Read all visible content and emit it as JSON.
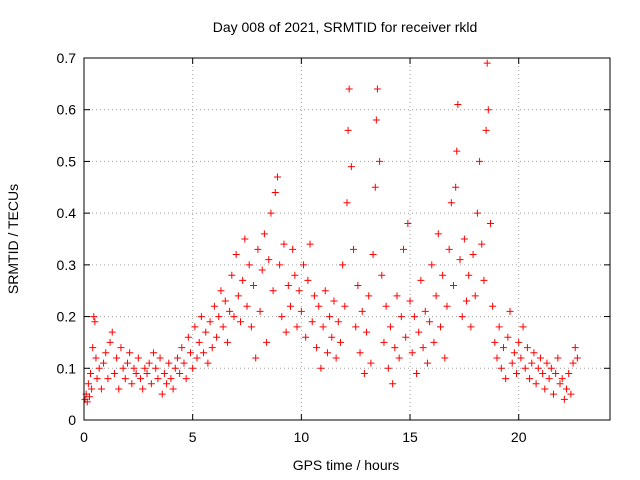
{
  "chart_data": {
    "type": "scatter",
    "title": "Day 008 of 2021, SRMTID for receiver rkld",
    "xlabel": "GPS time / hours",
    "ylabel": "SRMTID / TECUs",
    "xlim": [
      0,
      24.2
    ],
    "ylim": [
      0,
      0.7
    ],
    "xticks": [
      0,
      5,
      10,
      15,
      20
    ],
    "xtick_labels": [
      "0",
      "5",
      "10",
      "15",
      "20"
    ],
    "yticks": [
      0,
      0.1,
      0.2,
      0.3,
      0.4,
      0.5,
      0.6,
      0.7
    ],
    "ytick_labels": [
      "0",
      "0.1",
      "0.2",
      "0.3",
      "0.4",
      "0.5",
      "0.6",
      "0.7"
    ],
    "grid": true,
    "marker": "plus",
    "color": "#ff0000",
    "series": [
      {
        "name": "SRMTID",
        "points": [
          [
            0.05,
            0.04
          ],
          [
            0.1,
            0.05
          ],
          [
            0.15,
            0.035
          ],
          [
            0.2,
            0.07
          ],
          [
            0.25,
            0.045
          ],
          [
            0.3,
            0.09
          ],
          [
            0.35,
            0.06
          ],
          [
            0.4,
            0.14
          ],
          [
            0.45,
            0.2
          ],
          [
            0.5,
            0.19
          ],
          [
            0.55,
            0.12
          ],
          [
            0.6,
            0.08
          ],
          [
            0.7,
            0.1
          ],
          [
            0.8,
            0.06
          ],
          [
            0.9,
            0.11
          ],
          [
            1.0,
            0.13
          ],
          [
            1.1,
            0.08
          ],
          [
            1.2,
            0.15
          ],
          [
            1.3,
            0.17
          ],
          [
            1.4,
            0.09
          ],
          [
            1.5,
            0.12
          ],
          [
            1.6,
            0.06
          ],
          [
            1.7,
            0.14
          ],
          [
            1.8,
            0.1
          ],
          [
            1.9,
            0.08
          ],
          [
            2.0,
            0.11
          ],
          [
            2.1,
            0.13
          ],
          [
            2.2,
            0.07
          ],
          [
            2.3,
            0.1
          ],
          [
            2.4,
            0.09
          ],
          [
            2.5,
            0.12
          ],
          [
            2.6,
            0.08
          ],
          [
            2.7,
            0.06
          ],
          [
            2.8,
            0.1
          ],
          [
            2.9,
            0.09
          ],
          [
            3.0,
            0.11
          ],
          [
            3.1,
            0.07
          ],
          [
            3.2,
            0.13
          ],
          [
            3.3,
            0.1
          ],
          [
            3.4,
            0.08
          ],
          [
            3.5,
            0.12
          ],
          [
            3.6,
            0.05
          ],
          [
            3.7,
            0.09
          ],
          [
            3.8,
            0.07
          ],
          [
            3.9,
            0.11
          ],
          [
            4.0,
            0.08
          ],
          [
            4.1,
            0.06
          ],
          [
            4.2,
            0.1
          ],
          [
            4.3,
            0.12
          ],
          [
            4.4,
            0.09
          ],
          [
            4.5,
            0.14
          ],
          [
            4.6,
            0.11
          ],
          [
            4.7,
            0.08
          ],
          [
            4.8,
            0.16
          ],
          [
            4.9,
            0.13
          ],
          [
            5.0,
            0.1
          ],
          [
            5.1,
            0.18
          ],
          [
            5.2,
            0.12
          ],
          [
            5.3,
            0.15
          ],
          [
            5.4,
            0.2
          ],
          [
            5.5,
            0.13
          ],
          [
            5.6,
            0.17
          ],
          [
            5.7,
            0.11
          ],
          [
            5.8,
            0.19
          ],
          [
            5.9,
            0.14
          ],
          [
            6.0,
            0.22
          ],
          [
            6.1,
            0.16
          ],
          [
            6.2,
            0.2
          ],
          [
            6.3,
            0.25
          ],
          [
            6.4,
            0.18
          ],
          [
            6.5,
            0.23
          ],
          [
            6.6,
            0.15
          ],
          [
            6.7,
            0.21
          ],
          [
            6.8,
            0.28
          ],
          [
            6.9,
            0.2
          ],
          [
            7.0,
            0.32
          ],
          [
            7.1,
            0.24
          ],
          [
            7.2,
            0.19
          ],
          [
            7.3,
            0.27
          ],
          [
            7.4,
            0.35
          ],
          [
            7.5,
            0.22
          ],
          [
            7.6,
            0.3
          ],
          [
            7.7,
            0.18
          ],
          [
            7.8,
            0.26
          ],
          [
            7.9,
            0.12
          ],
          [
            8.0,
            0.33
          ],
          [
            8.1,
            0.21
          ],
          [
            8.2,
            0.29
          ],
          [
            8.3,
            0.36
          ],
          [
            8.4,
            0.15
          ],
          [
            8.5,
            0.31
          ],
          [
            8.6,
            0.4
          ],
          [
            8.7,
            0.25
          ],
          [
            8.8,
            0.44
          ],
          [
            8.9,
            0.47
          ],
          [
            9.0,
            0.3
          ],
          [
            9.1,
            0.2
          ],
          [
            9.2,
            0.34
          ],
          [
            9.3,
            0.17
          ],
          [
            9.4,
            0.26
          ],
          [
            9.5,
            0.22
          ],
          [
            9.6,
            0.33
          ],
          [
            9.7,
            0.28
          ],
          [
            9.8,
            0.18
          ],
          [
            9.9,
            0.25
          ],
          [
            10.0,
            0.21
          ],
          [
            10.1,
            0.3
          ],
          [
            10.2,
            0.16
          ],
          [
            10.3,
            0.27
          ],
          [
            10.4,
            0.34
          ],
          [
            10.5,
            0.19
          ],
          [
            10.6,
            0.24
          ],
          [
            10.7,
            0.14
          ],
          [
            10.8,
            0.22
          ],
          [
            10.9,
            0.1
          ],
          [
            11.0,
            0.18
          ],
          [
            11.1,
            0.25
          ],
          [
            11.2,
            0.13
          ],
          [
            11.3,
            0.2
          ],
          [
            11.4,
            0.16
          ],
          [
            11.5,
            0.23
          ],
          [
            11.6,
            0.12
          ],
          [
            11.7,
            0.19
          ],
          [
            11.8,
            0.15
          ],
          [
            11.9,
            0.3
          ],
          [
            12.0,
            0.22
          ],
          [
            12.1,
            0.42
          ],
          [
            12.15,
            0.56
          ],
          [
            12.2,
            0.64
          ],
          [
            12.3,
            0.49
          ],
          [
            12.4,
            0.33
          ],
          [
            12.5,
            0.18
          ],
          [
            12.6,
            0.26
          ],
          [
            12.7,
            0.13
          ],
          [
            12.8,
            0.21
          ],
          [
            12.9,
            0.09
          ],
          [
            13.0,
            0.17
          ],
          [
            13.1,
            0.24
          ],
          [
            13.2,
            0.11
          ],
          [
            13.3,
            0.32
          ],
          [
            13.4,
            0.45
          ],
          [
            13.45,
            0.58
          ],
          [
            13.5,
            0.64
          ],
          [
            13.6,
            0.5
          ],
          [
            13.7,
            0.28
          ],
          [
            13.8,
            0.15
          ],
          [
            13.9,
            0.22
          ],
          [
            14.0,
            0.1
          ],
          [
            14.1,
            0.18
          ],
          [
            14.2,
            0.07
          ],
          [
            14.3,
            0.14
          ],
          [
            14.4,
            0.24
          ],
          [
            14.5,
            0.12
          ],
          [
            14.6,
            0.2
          ],
          [
            14.7,
            0.33
          ],
          [
            14.8,
            0.16
          ],
          [
            14.9,
            0.38
          ],
          [
            15.0,
            0.23
          ],
          [
            15.1,
            0.13
          ],
          [
            15.2,
            0.2
          ],
          [
            15.3,
            0.09
          ],
          [
            15.4,
            0.17
          ],
          [
            15.5,
            0.27
          ],
          [
            15.6,
            0.14
          ],
          [
            15.7,
            0.21
          ],
          [
            15.8,
            0.11
          ],
          [
            15.9,
            0.19
          ],
          [
            16.0,
            0.3
          ],
          [
            16.1,
            0.15
          ],
          [
            16.2,
            0.24
          ],
          [
            16.3,
            0.36
          ],
          [
            16.4,
            0.18
          ],
          [
            16.5,
            0.28
          ],
          [
            16.6,
            0.12
          ],
          [
            16.7,
            0.22
          ],
          [
            16.8,
            0.33
          ],
          [
            16.9,
            0.42
          ],
          [
            17.0,
            0.26
          ],
          [
            17.1,
            0.45
          ],
          [
            17.15,
            0.52
          ],
          [
            17.2,
            0.61
          ],
          [
            17.3,
            0.31
          ],
          [
            17.4,
            0.2
          ],
          [
            17.5,
            0.35
          ],
          [
            17.6,
            0.23
          ],
          [
            17.7,
            0.28
          ],
          [
            17.8,
            0.18
          ],
          [
            17.9,
            0.32
          ],
          [
            18.0,
            0.24
          ],
          [
            18.1,
            0.4
          ],
          [
            18.2,
            0.5
          ],
          [
            18.3,
            0.34
          ],
          [
            18.4,
            0.27
          ],
          [
            18.5,
            0.56
          ],
          [
            18.55,
            0.69
          ],
          [
            18.6,
            0.6
          ],
          [
            18.7,
            0.38
          ],
          [
            18.8,
            0.22
          ],
          [
            18.9,
            0.15
          ],
          [
            19.0,
            0.12
          ],
          [
            19.1,
            0.18
          ],
          [
            19.2,
            0.1
          ],
          [
            19.3,
            0.14
          ],
          [
            19.4,
            0.08
          ],
          [
            19.5,
            0.16
          ],
          [
            19.6,
            0.21
          ],
          [
            19.7,
            0.11
          ],
          [
            19.8,
            0.13
          ],
          [
            19.9,
            0.09
          ],
          [
            20.0,
            0.15
          ],
          [
            20.1,
            0.12
          ],
          [
            20.2,
            0.18
          ],
          [
            20.3,
            0.1
          ],
          [
            20.4,
            0.14
          ],
          [
            20.5,
            0.08
          ],
          [
            20.6,
            0.11
          ],
          [
            20.7,
            0.13
          ],
          [
            20.8,
            0.07
          ],
          [
            20.9,
            0.1
          ],
          [
            21.0,
            0.12
          ],
          [
            21.1,
            0.09
          ],
          [
            21.2,
            0.06
          ],
          [
            21.3,
            0.11
          ],
          [
            21.4,
            0.08
          ],
          [
            21.5,
            0.1
          ],
          [
            21.6,
            0.05
          ],
          [
            21.7,
            0.09
          ],
          [
            21.8,
            0.12
          ],
          [
            21.9,
            0.07
          ],
          [
            22.0,
            0.08
          ],
          [
            22.1,
            0.04
          ],
          [
            22.2,
            0.06
          ],
          [
            22.3,
            0.09
          ],
          [
            22.4,
            0.05
          ],
          [
            22.5,
            0.11
          ],
          [
            22.6,
            0.14
          ],
          [
            22.7,
            0.12
          ]
        ]
      }
    ]
  }
}
